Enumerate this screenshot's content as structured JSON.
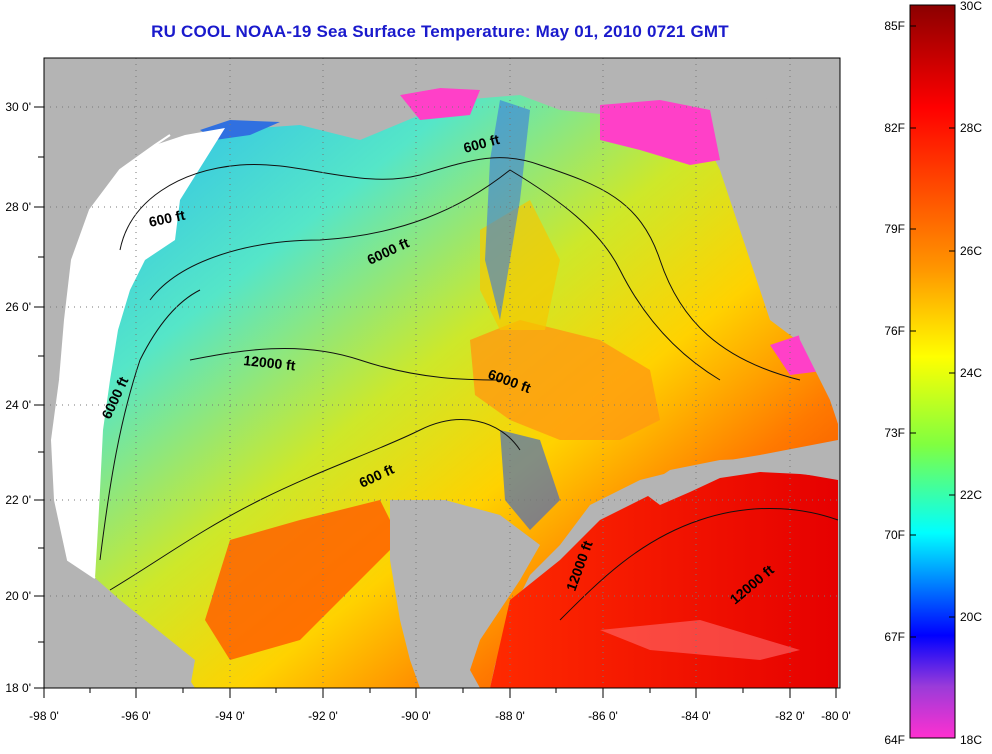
{
  "title": "RU COOL  NOAA-19  Sea Surface Temperature:  May 01, 2010 0721 GMT",
  "map": {
    "lon_labels": [
      "-98 0'",
      "-96 0'",
      "-94 0'",
      "-92 0'",
      "-90 0'",
      "-88 0'",
      "-86 0'",
      "-84 0'",
      "-82 0'",
      "-80 0'"
    ],
    "lat_labels": [
      "30 0'",
      "28 0'",
      "26 0'",
      "24 0'",
      "22 0'",
      "20 0'",
      "18 0'"
    ],
    "contour_labels": [
      "600 ft",
      "600 ft",
      "600 ft",
      "6000 ft",
      "6000 ft",
      "6000 ft",
      "12000 ft",
      "12000 ft",
      "12000 ft"
    ]
  },
  "colorbar": {
    "fahrenheit_labels": [
      "85F",
      "82F",
      "79F",
      "76F",
      "73F",
      "70F",
      "67F",
      "64F"
    ],
    "celsius_labels": [
      "30C",
      "28C",
      "26C",
      "24C",
      "22C",
      "20C",
      "18C"
    ],
    "colors": [
      "#8b0000",
      "#ff0000",
      "#ff8c00",
      "#ffff00",
      "#7fff00",
      "#00ffff",
      "#0000ff",
      "#ff00ff"
    ]
  }
}
